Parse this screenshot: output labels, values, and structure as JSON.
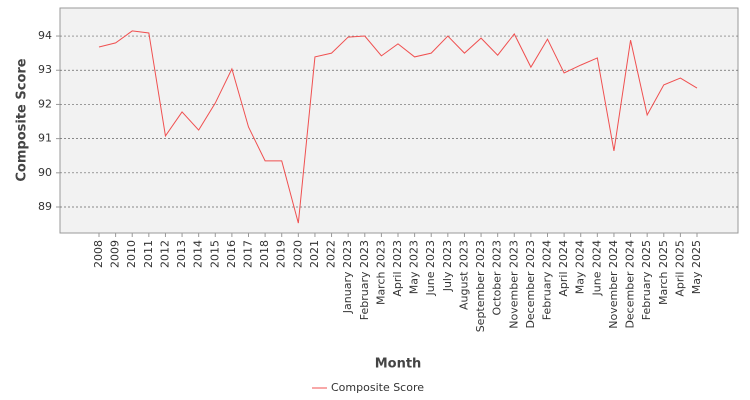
{
  "chart_data": {
    "type": "line",
    "x_label": "Month",
    "y_label": "Composite Score",
    "categories": [
      "2008",
      "2009",
      "2010",
      "2011",
      "2012",
      "2013",
      "2014",
      "2015",
      "2016",
      "2017",
      "2018",
      "2019",
      "2020",
      "2021",
      "2022",
      "January 2023",
      "February 2023",
      "March 2023",
      "April 2023",
      "May 2023",
      "June 2023",
      "July 2023",
      "August 2023",
      "September 2023",
      "October 2023",
      "November 2023",
      "December 2023",
      "February 2024",
      "April 2024",
      "May 2024",
      "June 2024",
      "November 2024",
      "December 2024",
      "February 2025",
      "March 2025",
      "April 2025",
      "May 2025"
    ],
    "series": [
      {
        "name": "Composite Score",
        "color": "#f05050",
        "values": [
          93.68,
          93.8,
          94.15,
          94.09,
          91.08,
          91.78,
          91.25,
          92.04,
          93.04,
          91.34,
          90.35,
          90.35,
          88.53,
          93.39,
          93.5,
          93.97,
          94.0,
          93.42,
          93.77,
          93.39,
          93.5,
          94.0,
          93.5,
          93.94,
          93.44,
          94.06,
          93.09,
          93.91,
          92.92,
          93.15,
          93.36,
          90.64,
          93.88,
          91.69,
          92.57,
          92.77,
          92.48
        ]
      }
    ],
    "ylim": [
      88.24,
      94.82
    ],
    "yticks": [
      89,
      90,
      91,
      92,
      93,
      94
    ],
    "grid": true,
    "legend": "bottom"
  }
}
